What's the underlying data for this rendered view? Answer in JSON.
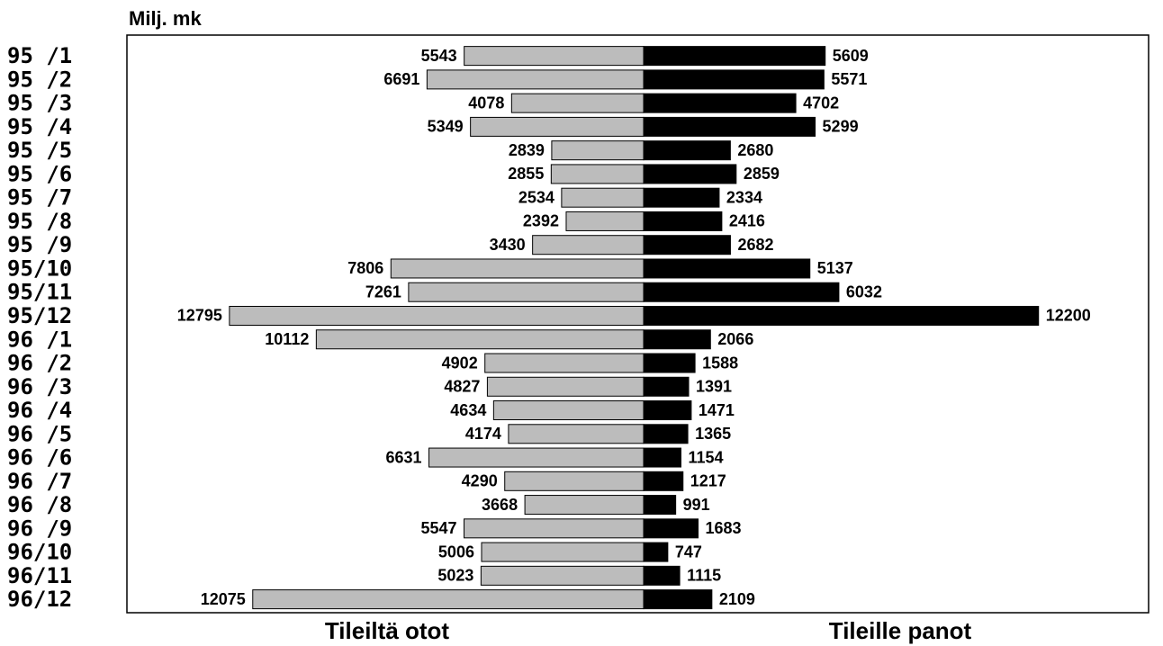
{
  "chart_data": {
    "type": "butterfly-bar",
    "title": "Milj. mk",
    "categories": [
      "95 /1",
      "95 /2",
      "95 /3",
      "95 /4",
      "95 /5",
      "95 /6",
      "95 /7",
      "95 /8",
      "95 /9",
      "95/10",
      "95/11",
      "95/12",
      "96 /1",
      "96 /2",
      "96 /3",
      "96 /4",
      "96 /5",
      "96 /6",
      "96 /7",
      "96 /8",
      "96 /9",
      "96/10",
      "96/11",
      "96/12"
    ],
    "series": [
      {
        "name": "Tileiltä otot",
        "color": "#bcbcbc",
        "side": "left",
        "values": [
          5543,
          6691,
          4078,
          5349,
          2839,
          2855,
          2534,
          2392,
          3430,
          7806,
          7261,
          12795,
          10112,
          4902,
          4827,
          4634,
          4174,
          6631,
          4290,
          3668,
          5547,
          5006,
          5023,
          12075
        ]
      },
      {
        "name": "Tileille panot",
        "color": "#000000",
        "side": "right",
        "values": [
          5609,
          5571,
          4702,
          5299,
          2680,
          2859,
          2334,
          2416,
          2682,
          5137,
          6032,
          12200,
          2066,
          1588,
          1391,
          1471,
          1365,
          1154,
          1217,
          991,
          1683,
          747,
          1115,
          2109
        ]
      }
    ],
    "xlim": [
      0,
      15600
    ]
  }
}
